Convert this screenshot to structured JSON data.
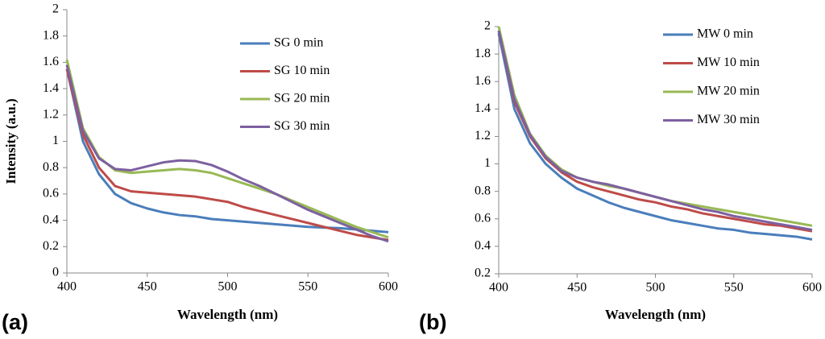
{
  "chart_data": [
    {
      "type": "line",
      "panel_label": "(a)",
      "x_label": "Wavelength (nm)",
      "y_label": "Intensity (a.u.)",
      "x": [
        400,
        410,
        420,
        430,
        440,
        450,
        460,
        470,
        480,
        490,
        500,
        510,
        520,
        530,
        540,
        550,
        560,
        570,
        580,
        590,
        600
      ],
      "xlim": [
        400,
        600
      ],
      "xticks": [
        400,
        450,
        500,
        550,
        600
      ],
      "ylim": [
        0,
        2
      ],
      "yticks": [
        0,
        0.2,
        0.4,
        0.6,
        0.8,
        1,
        1.2,
        1.4,
        1.6,
        1.8,
        2
      ],
      "grid": false,
      "legend": "upper right",
      "series": [
        {
          "name": "SG 0 min",
          "color": "#4a7ebb",
          "values": [
            1.55,
            1.0,
            0.75,
            0.6,
            0.53,
            0.49,
            0.46,
            0.44,
            0.43,
            0.41,
            0.4,
            0.39,
            0.38,
            0.37,
            0.36,
            0.35,
            0.345,
            0.34,
            0.33,
            0.32,
            0.31
          ]
        },
        {
          "name": "SG 10 min",
          "color": "#be4b48",
          "values": [
            1.55,
            1.05,
            0.8,
            0.66,
            0.62,
            0.61,
            0.6,
            0.59,
            0.58,
            0.56,
            0.54,
            0.5,
            0.47,
            0.44,
            0.41,
            0.38,
            0.35,
            0.32,
            0.29,
            0.27,
            0.25
          ]
        },
        {
          "name": "SG 20 min",
          "color": "#98b954",
          "values": [
            1.62,
            1.1,
            0.88,
            0.78,
            0.76,
            0.77,
            0.78,
            0.79,
            0.78,
            0.76,
            0.72,
            0.68,
            0.64,
            0.6,
            0.55,
            0.5,
            0.45,
            0.4,
            0.35,
            0.31,
            0.27
          ]
        },
        {
          "name": "SG 30 min",
          "color": "#7d60a0",
          "values": [
            1.58,
            1.08,
            0.87,
            0.79,
            0.78,
            0.81,
            0.84,
            0.855,
            0.85,
            0.82,
            0.77,
            0.71,
            0.66,
            0.6,
            0.54,
            0.48,
            0.43,
            0.38,
            0.33,
            0.28,
            0.24
          ]
        }
      ]
    },
    {
      "type": "line",
      "panel_label": "(b)",
      "x_label": "Wavelength (nm)",
      "x": [
        400,
        410,
        420,
        430,
        440,
        450,
        460,
        470,
        480,
        490,
        500,
        510,
        520,
        530,
        540,
        550,
        560,
        570,
        580,
        590,
        600
      ],
      "xlim": [
        400,
        600
      ],
      "xticks": [
        400,
        450,
        500,
        550,
        600
      ],
      "ylim": [
        0.2,
        2
      ],
      "yticks": [
        0.2,
        0.4,
        0.6,
        0.8,
        1,
        1.2,
        1.4,
        1.6,
        1.8,
        2
      ],
      "grid": false,
      "legend": "upper right",
      "series": [
        {
          "name": "MW 0 min",
          "color": "#4a7ebb",
          "values": [
            1.95,
            1.4,
            1.15,
            1.0,
            0.9,
            0.82,
            0.77,
            0.72,
            0.68,
            0.65,
            0.62,
            0.59,
            0.57,
            0.55,
            0.53,
            0.52,
            0.5,
            0.49,
            0.48,
            0.47,
            0.45
          ]
        },
        {
          "name": "MW 10 min",
          "color": "#be4b48",
          "values": [
            1.97,
            1.45,
            1.2,
            1.04,
            0.94,
            0.87,
            0.83,
            0.8,
            0.77,
            0.74,
            0.72,
            0.69,
            0.67,
            0.64,
            0.62,
            0.6,
            0.58,
            0.56,
            0.55,
            0.53,
            0.51
          ]
        },
        {
          "name": "MW 20 min",
          "color": "#98b954",
          "values": [
            2.0,
            1.5,
            1.22,
            1.06,
            0.96,
            0.9,
            0.87,
            0.84,
            0.82,
            0.79,
            0.76,
            0.73,
            0.71,
            0.69,
            0.67,
            0.65,
            0.63,
            0.61,
            0.59,
            0.57,
            0.55
          ]
        },
        {
          "name": "MW 30 min",
          "color": "#7d60a0",
          "values": [
            1.97,
            1.47,
            1.21,
            1.05,
            0.95,
            0.9,
            0.87,
            0.85,
            0.82,
            0.79,
            0.76,
            0.73,
            0.7,
            0.67,
            0.65,
            0.62,
            0.6,
            0.58,
            0.56,
            0.54,
            0.52
          ]
        }
      ]
    }
  ]
}
